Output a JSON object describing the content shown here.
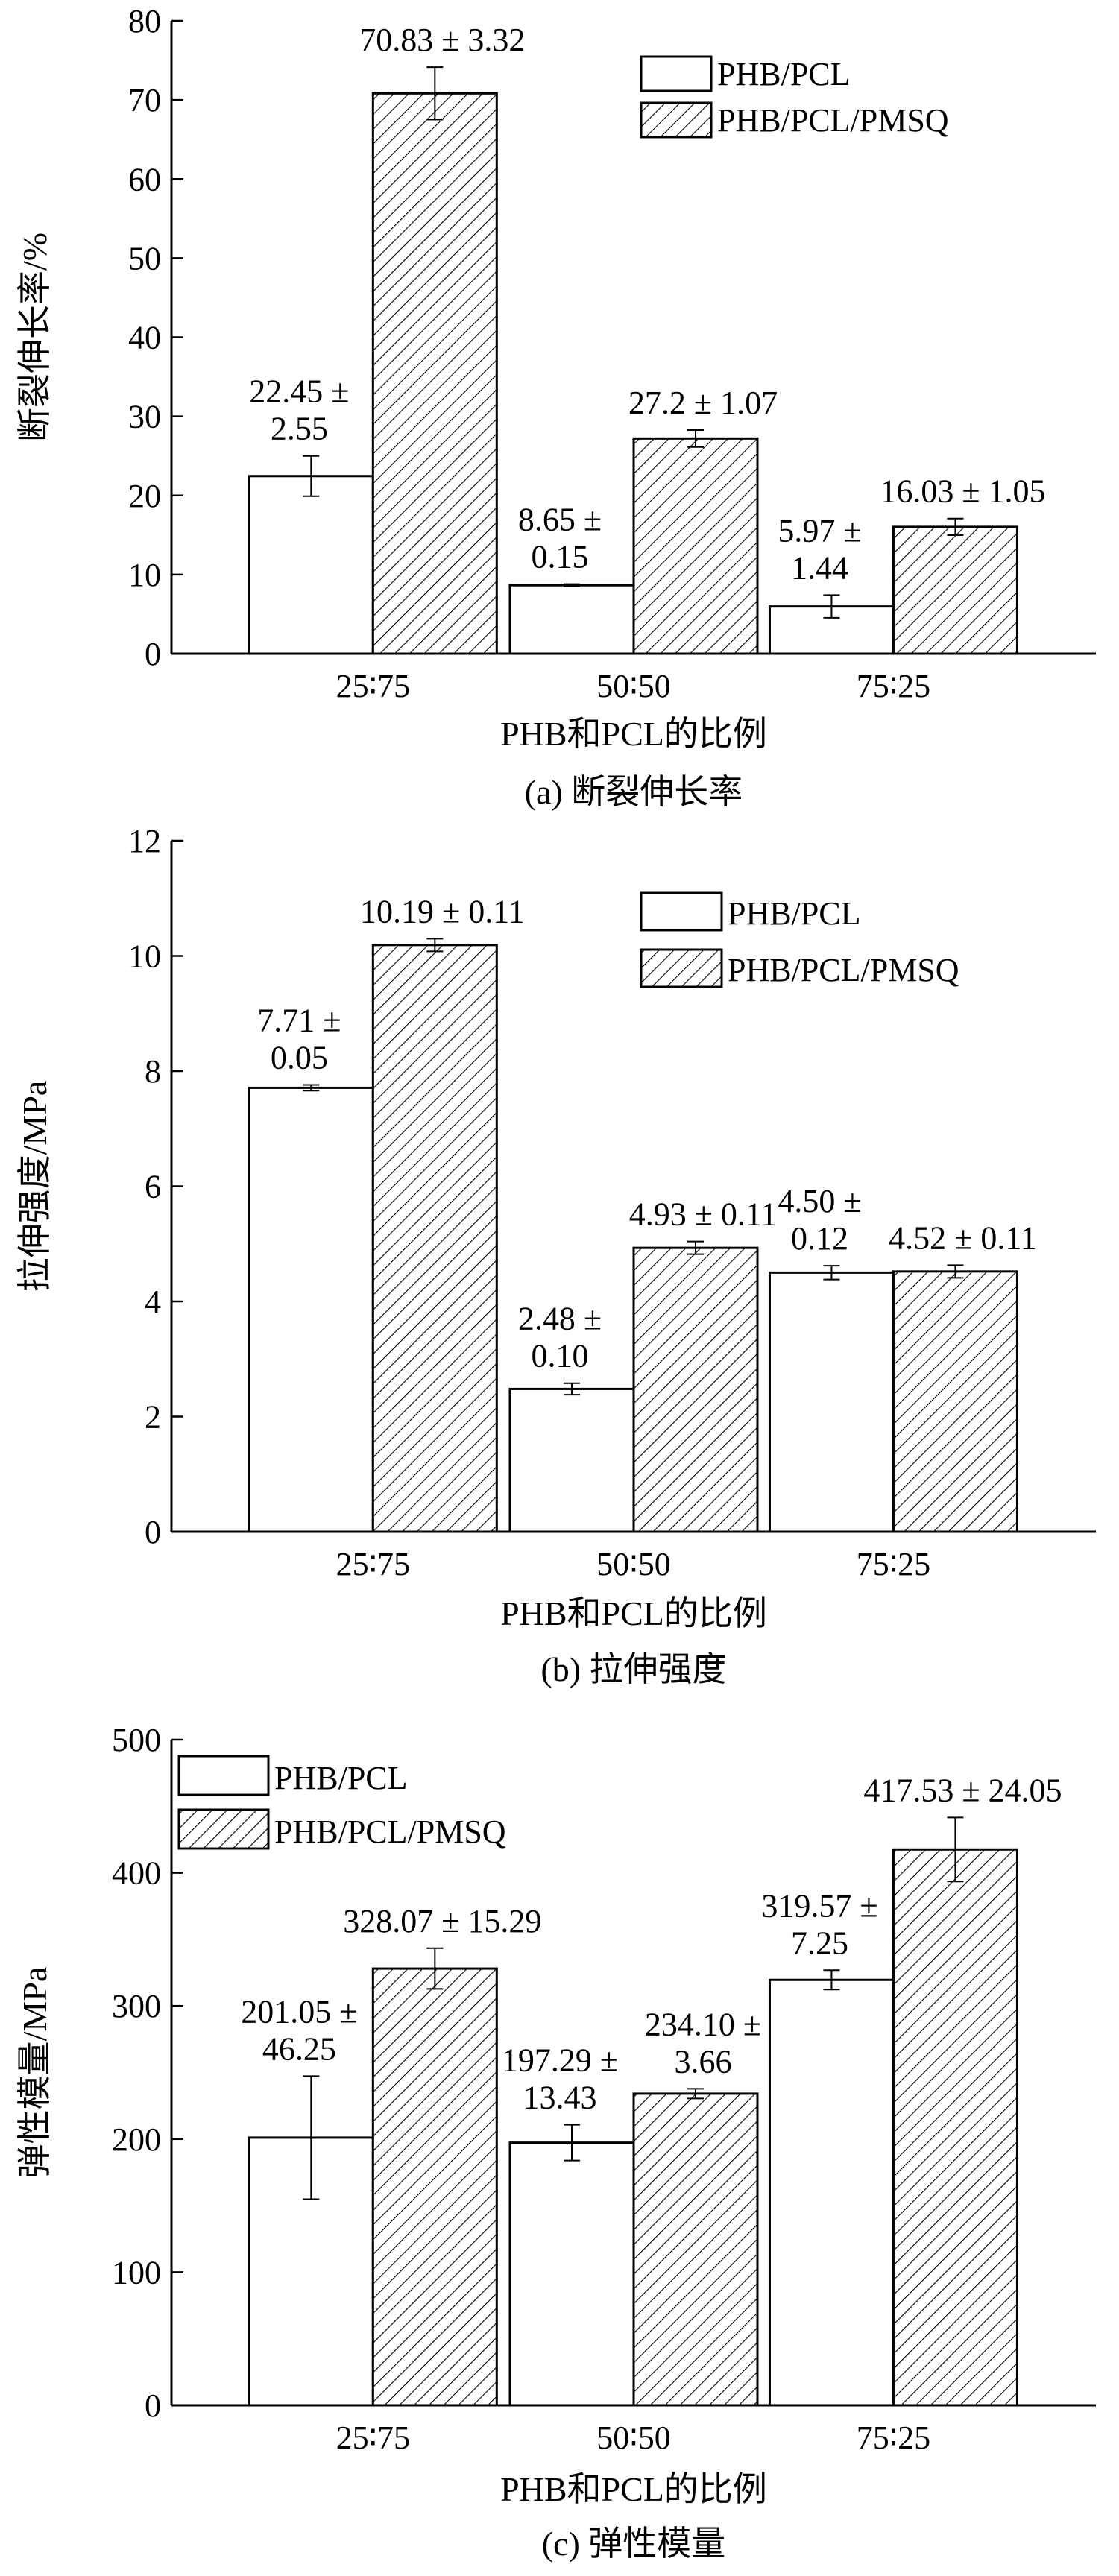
{
  "chart_data": [
    {
      "type": "bar",
      "caption": "(a) 断裂伸长率",
      "xlabel": "PHB和PCL的比例",
      "ylabel": "断裂伸长率/%",
      "categories": [
        "25∶75",
        "50∶50",
        "75∶25"
      ],
      "ylim": [
        0,
        80
      ],
      "yticks": [
        0,
        10,
        20,
        30,
        40,
        50,
        60,
        70,
        80
      ],
      "legend_position": "top-right",
      "series": [
        {
          "name": "PHB/PCL",
          "fill": "white",
          "values": [
            22.45,
            8.65,
            5.97
          ],
          "errors": [
            2.55,
            0.15,
            1.44
          ],
          "labels": [
            [
              "22.45 ±",
              "2.55"
            ],
            [
              "8.65 ±",
              "0.15"
            ],
            [
              "5.97 ±",
              "1.44"
            ]
          ]
        },
        {
          "name": "PHB/PCL/PMSQ",
          "fill": "hatched",
          "values": [
            70.83,
            27.2,
            16.03
          ],
          "errors": [
            3.32,
            1.07,
            1.05
          ],
          "labels": [
            [
              "70.83 ± 3.32"
            ],
            [
              "27.2 ± 1.07"
            ],
            [
              "16.03 ± 1.05"
            ]
          ]
        }
      ]
    },
    {
      "type": "bar",
      "caption": "(b) 拉伸强度",
      "xlabel": "PHB和PCL的比例",
      "ylabel": "拉伸强度/MPa",
      "categories": [
        "25∶75",
        "50∶50",
        "75∶25"
      ],
      "ylim": [
        0,
        12
      ],
      "yticks": [
        0,
        2,
        4,
        6,
        8,
        10,
        12
      ],
      "legend_position": "top-right",
      "series": [
        {
          "name": "PHB/PCL",
          "fill": "white",
          "values": [
            7.71,
            2.48,
            4.5
          ],
          "errors": [
            0.05,
            0.1,
            0.12
          ],
          "labels": [
            [
              "7.71 ±",
              "0.05"
            ],
            [
              "2.48 ±",
              "0.10"
            ],
            [
              "4.50 ±",
              "0.12"
            ]
          ]
        },
        {
          "name": "PHB/PCL/PMSQ",
          "fill": "hatched",
          "values": [
            10.19,
            4.93,
            4.52
          ],
          "errors": [
            0.11,
            0.11,
            0.11
          ],
          "labels": [
            [
              "10.19 ± 0.11"
            ],
            [
              "4.93 ± 0.11"
            ],
            [
              "4.52 ± 0.11"
            ]
          ]
        }
      ]
    },
    {
      "type": "bar",
      "caption": "(c) 弹性模量",
      "xlabel": "PHB和PCL的比例",
      "ylabel": "弹性模量/MPa",
      "categories": [
        "25∶75",
        "50∶50",
        "75∶25"
      ],
      "ylim": [
        0,
        500
      ],
      "yticks": [
        0,
        100,
        200,
        300,
        400,
        500
      ],
      "legend_position": "top-left",
      "series": [
        {
          "name": "PHB/PCL",
          "fill": "white",
          "values": [
            201.05,
            197.29,
            319.57
          ],
          "errors": [
            46.25,
            13.43,
            7.25
          ],
          "labels": [
            [
              "201.05 ±",
              "46.25"
            ],
            [
              "197.29 ±",
              "13.43"
            ],
            [
              "319.57 ±",
              "7.25"
            ]
          ]
        },
        {
          "name": "PHB/PCL/PMSQ",
          "fill": "hatched",
          "values": [
            328.07,
            234.1,
            417.53
          ],
          "errors": [
            15.29,
            3.66,
            24.05
          ],
          "labels": [
            [
              "328.07 ± 15.29"
            ],
            [
              "234.10 ±",
              "3.66"
            ],
            [
              "417.53 ± 24.05"
            ]
          ]
        }
      ]
    }
  ]
}
